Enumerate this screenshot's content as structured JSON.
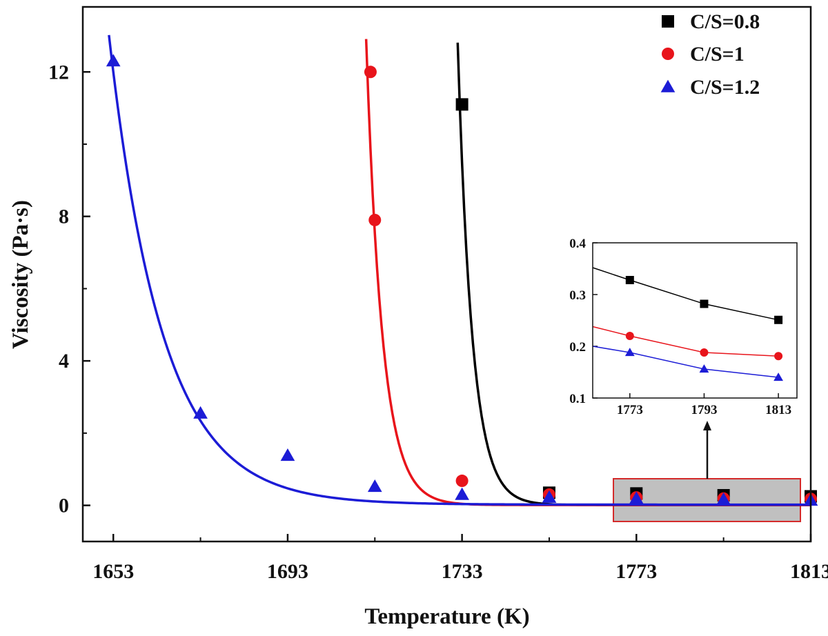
{
  "chart_data": [
    {
      "type": "scatter",
      "xlabel": "Temperature (K)",
      "ylabel": "Viscosity (Pa·s)",
      "xlim": [
        1646,
        1813
      ],
      "ylim": [
        -1,
        13.8
      ],
      "xticks": [
        1653,
        1693,
        1733,
        1773,
        1813
      ],
      "yticks": [
        0,
        4,
        8,
        12
      ],
      "xtick_labels": [
        "1653",
        "1693",
        "1733",
        "1773",
        "1813"
      ],
      "ytick_labels": [
        "0",
        "4",
        "8",
        "12"
      ],
      "legend_position": "top-right",
      "series": [
        {
          "name": "C/S=0.8",
          "marker": "square",
          "color": "#000000",
          "x": [
            1733,
            1753,
            1773,
            1793,
            1813
          ],
          "y": [
            11.1,
            0.35,
            0.33,
            0.28,
            0.25
          ],
          "fit_curve": {
            "x0": 1732,
            "x1": 1813,
            "a": 12.8,
            "k": 0.3,
            "c": 0.01
          }
        },
        {
          "name": "C/S=1",
          "marker": "circle",
          "color": "#e8141b",
          "x": [
            1712,
            1713,
            1733,
            1753,
            1773,
            1793,
            1813
          ],
          "y": [
            12.0,
            7.9,
            0.68,
            0.3,
            0.22,
            0.19,
            0.18
          ],
          "fit_curve": {
            "x0": 1711,
            "x1": 1813,
            "a": 12.9,
            "k": 0.27,
            "c": 0.01
          }
        },
        {
          "name": "C/S=1.2",
          "marker": "triangle",
          "color": "#1c1cd6",
          "x": [
            1653,
            1673,
            1693,
            1713,
            1733,
            1753,
            1773,
            1793,
            1813
          ],
          "y": [
            12.3,
            2.55,
            1.38,
            0.52,
            0.3,
            0.22,
            0.19,
            0.16,
            0.14
          ],
          "fit_curve": {
            "x0": 1652,
            "x1": 1813,
            "a": 13.0,
            "k": 0.082,
            "c": 0.02
          }
        }
      ]
    },
    {
      "type": "line",
      "title": "inset",
      "xlim": [
        1763,
        1818
      ],
      "ylim": [
        0.1,
        0.4
      ],
      "xticks": [
        1773,
        1793,
        1813
      ],
      "yticks": [
        0.1,
        0.2,
        0.3,
        0.4
      ],
      "xtick_labels": [
        "1773",
        "1793",
        "1813"
      ],
      "ytick_labels": [
        "0.1",
        "0.2",
        "0.3",
        "0.4"
      ],
      "series": [
        {
          "name": "C/S=0.8",
          "marker": "square",
          "color": "#000000",
          "x": [
            1773,
            1793,
            1813
          ],
          "y": [
            0.328,
            0.282,
            0.251
          ],
          "line_start": [
            1763,
            0.352
          ]
        },
        {
          "name": "C/S=1",
          "marker": "circle",
          "color": "#e8141b",
          "x": [
            1773,
            1793,
            1813
          ],
          "y": [
            0.22,
            0.188,
            0.181
          ],
          "line_start": [
            1763,
            0.238
          ]
        },
        {
          "name": "C/S=1.2",
          "marker": "triangle",
          "color": "#1c1cd6",
          "x": [
            1773,
            1793,
            1813
          ],
          "y": [
            0.188,
            0.156,
            0.14
          ],
          "line_start": [
            1763,
            0.2
          ]
        }
      ]
    }
  ]
}
